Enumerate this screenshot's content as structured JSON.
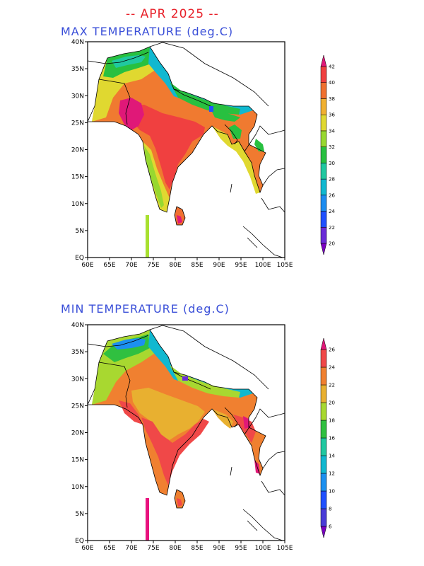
{
  "header": {
    "title": "-- APR 2025 --"
  },
  "panels": [
    {
      "id": "max",
      "title": "MAX TEMPERATURE (deg.C)",
      "x_ticks": [
        "60E",
        "65E",
        "70E",
        "75E",
        "80E",
        "85E",
        "90E",
        "95E",
        "100E",
        "105E"
      ],
      "y_ticks": [
        "EQ",
        "5N",
        "10N",
        "15N",
        "20N",
        "25N",
        "30N",
        "35N",
        "40N"
      ],
      "colorbar": {
        "labels": [
          "20",
          "22",
          "24",
          "26",
          "28",
          "30",
          "32",
          "34",
          "36",
          "38",
          "40",
          "42"
        ],
        "colors": [
          "#7a00c0",
          "#6a2bd8",
          "#2050ff",
          "#1c8cf0",
          "#10b8d0",
          "#20c8a0",
          "#28c040",
          "#98d830",
          "#e0d830",
          "#f0b030",
          "#f07030",
          "#f04040",
          "#e01878"
        ]
      },
      "marker_color": "#a8e030",
      "lake_color": "#2050ff"
    },
    {
      "id": "min",
      "title": "MIN TEMPERATURE (deg.C)",
      "x_ticks": [
        "60E",
        "65E",
        "70E",
        "75E",
        "80E",
        "85E",
        "90E",
        "95E",
        "100E",
        "105E"
      ],
      "y_ticks": [
        "EQ",
        "5N",
        "10N",
        "15N",
        "20N",
        "25N",
        "30N",
        "35N",
        "40N"
      ],
      "colorbar": {
        "labels": [
          "6",
          "8",
          "10",
          "12",
          "14",
          "16",
          "18",
          "20",
          "22",
          "24",
          "26"
        ],
        "colors": [
          "#7a00c0",
          "#4a3cd8",
          "#2050ff",
          "#1c90f0",
          "#10b8d0",
          "#20c8a0",
          "#30c040",
          "#a8d830",
          "#e8b030",
          "#f08030",
          "#f04848",
          "#e01878"
        ]
      },
      "marker_color": "#e8127e",
      "lake_color": "#6a2bd8"
    }
  ]
}
